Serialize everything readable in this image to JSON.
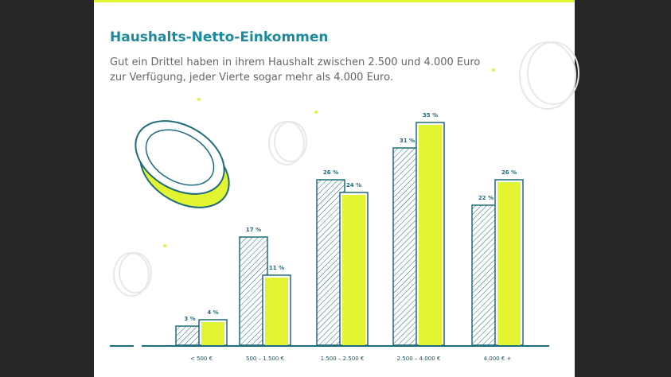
{
  "chart_data": {
    "type": "bar",
    "title": "Haushalts-Netto-Einkommen",
    "subtitle": [
      "Gut ein Drittel haben in ihrem Haushalt zwischen 2.500 und 4.000 Euro",
      "zur Verfügung, jeder Vierte sogar mehr als 4.000 Euro."
    ],
    "categories": [
      "< 500 €",
      "500 – 1.500 €",
      "1.500 – 2.500 €",
      "2.500 – 4.000 €",
      "4.000 € +"
    ],
    "series": [
      {
        "color": "#1d6b7c",
        "values": [
          3,
          17,
          26,
          31,
          22
        ],
        "value_labels": [
          "3 %",
          "17 %",
          "26 %",
          "31 %",
          "22 %"
        ]
      },
      {
        "color": "#e3f532",
        "values": [
          4,
          11,
          24,
          35,
          26
        ],
        "value_labels": [
          "4 %",
          "11 %",
          "24 %",
          "35 %",
          "26 %"
        ]
      }
    ],
    "ylim": [
      0,
      35
    ]
  }
}
